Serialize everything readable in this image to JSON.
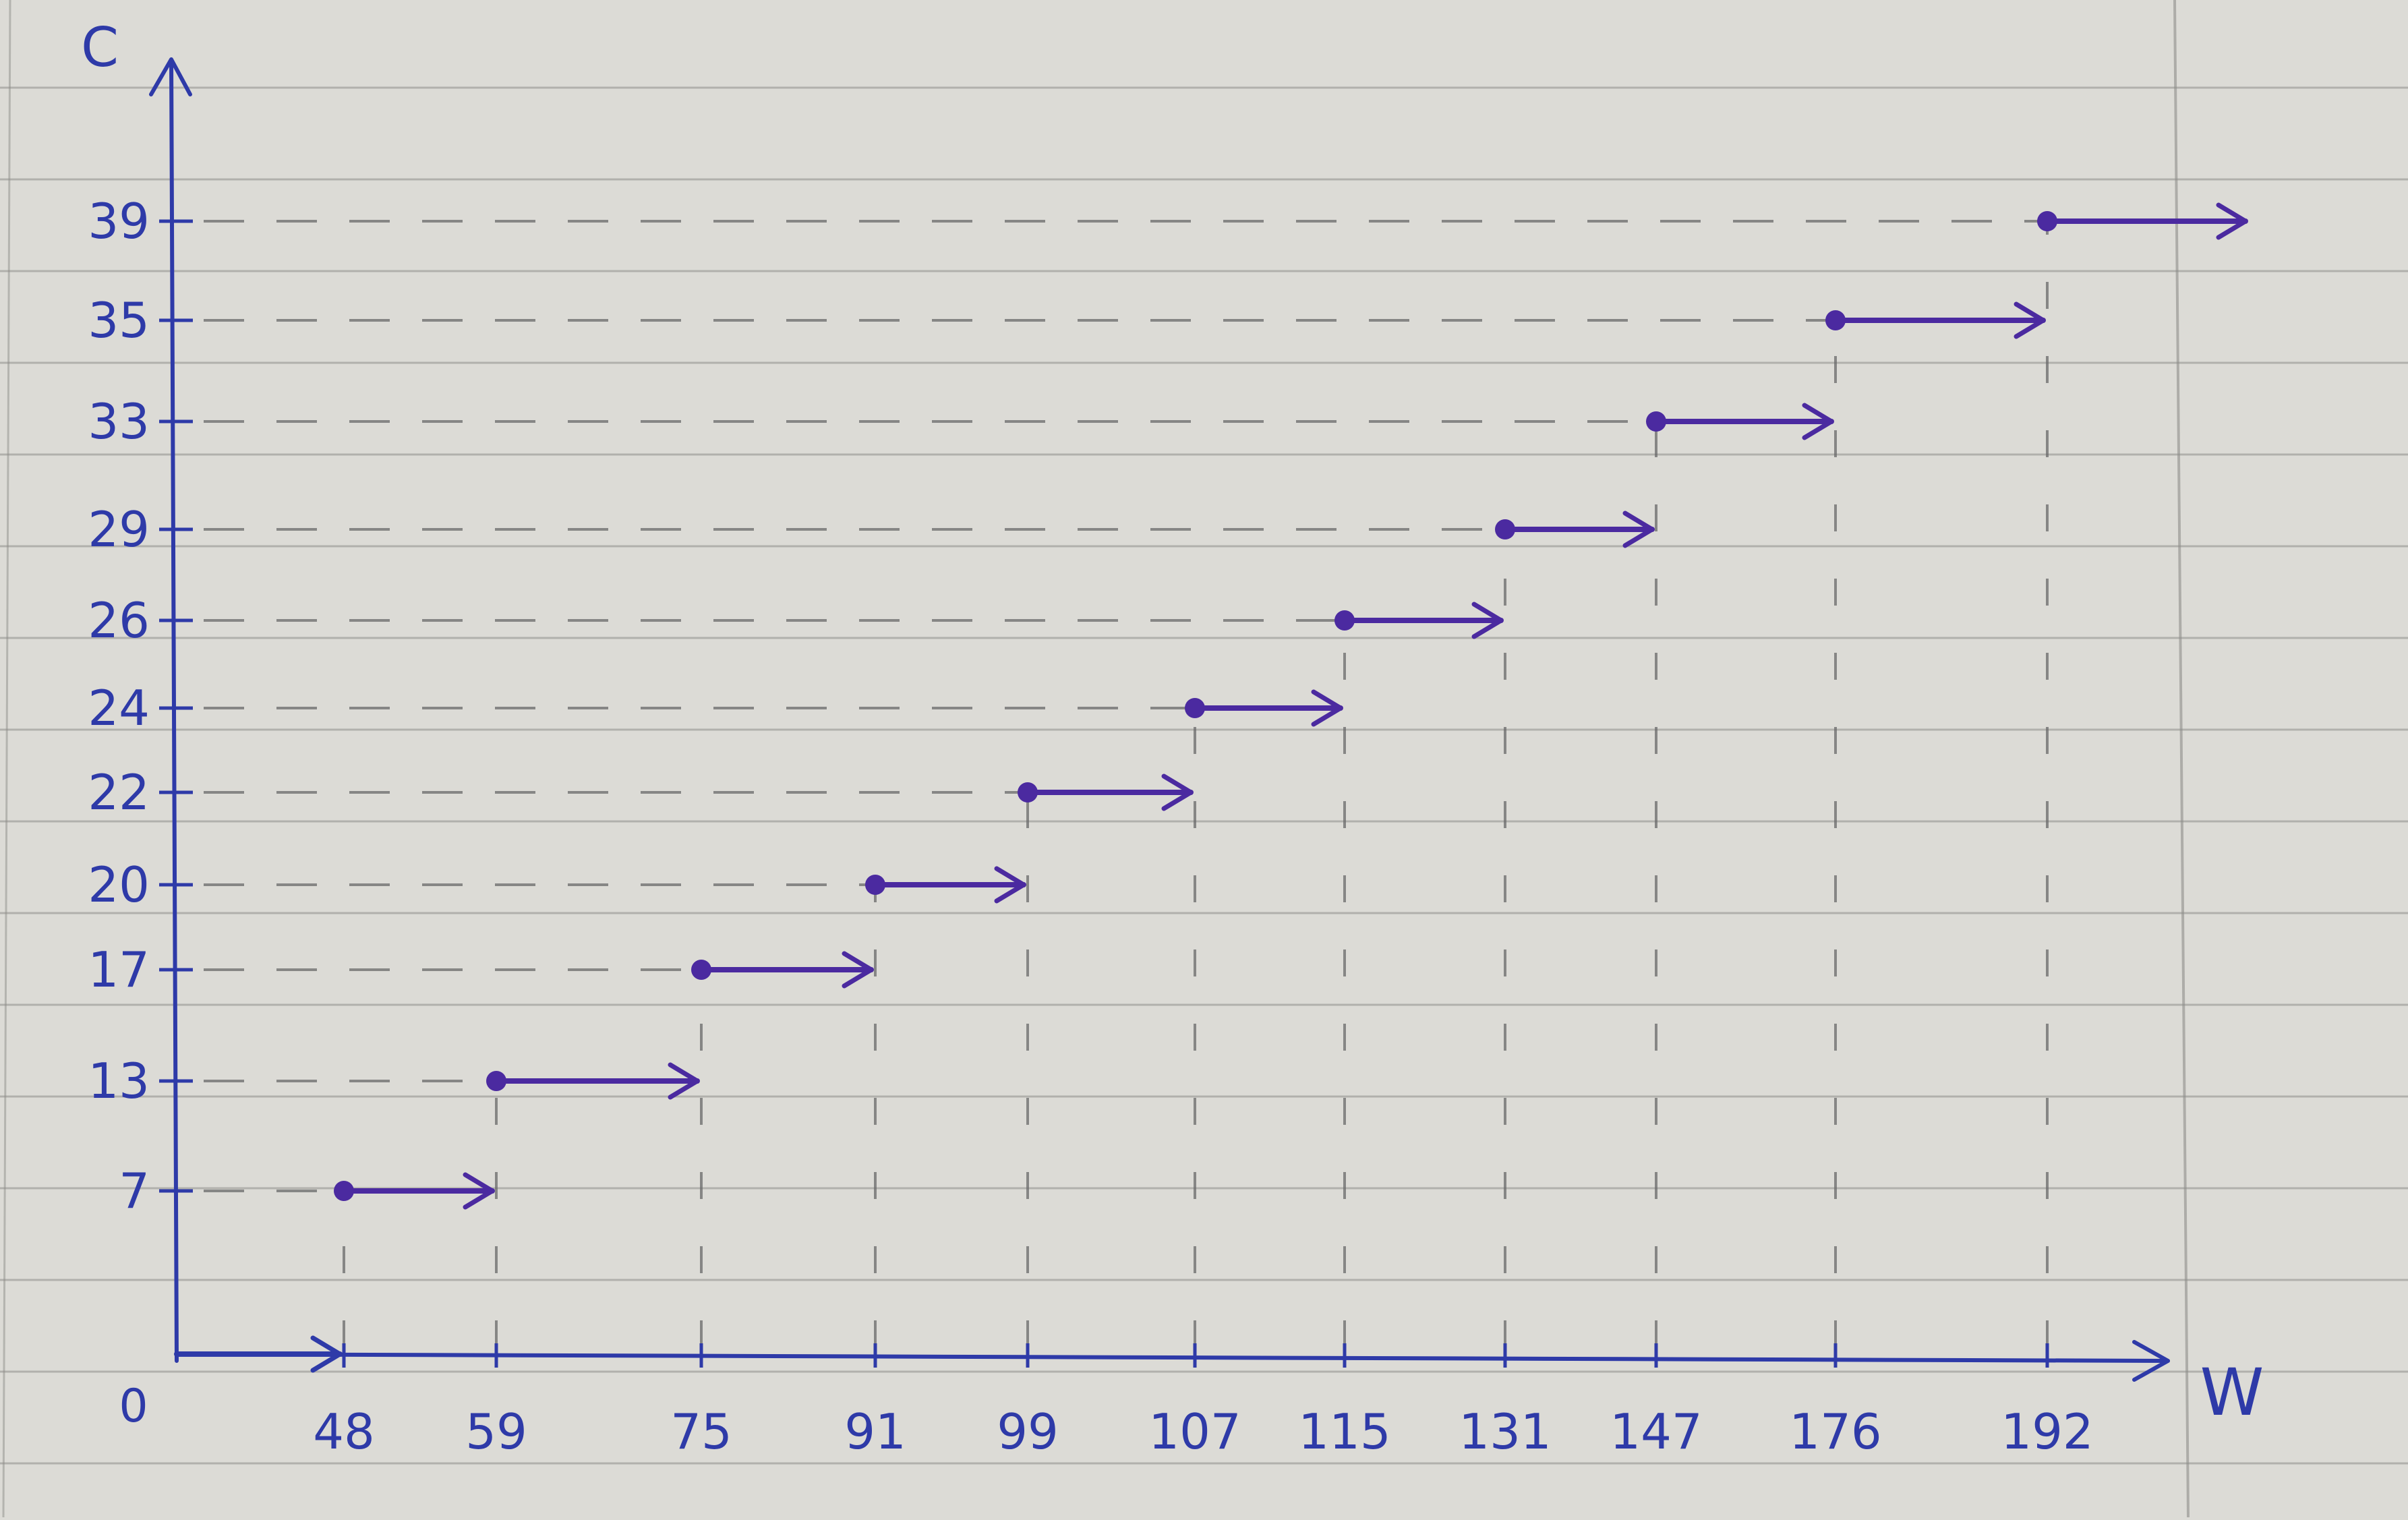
{
  "chart_data": {
    "type": "line",
    "subtype": "step",
    "title": "",
    "xlabel": "W",
    "ylabel": "C",
    "origin_label": "0",
    "x_ticks": [
      48,
      59,
      75,
      91,
      99,
      107,
      115,
      131,
      147,
      176,
      192
    ],
    "x_tick_labels": [
      "48",
      "59",
      "75",
      "91",
      "99",
      "107",
      "115",
      "131",
      "147",
      "176",
      "192"
    ],
    "y_ticks": [
      7,
      13,
      17,
      20,
      22,
      24,
      26,
      29,
      33,
      35,
      39
    ],
    "y_tick_labels": [
      "7",
      "13",
      "17",
      "20",
      "22",
      "24",
      "26",
      "29",
      "33",
      "35",
      "39"
    ],
    "segments": [
      {
        "x_start": 0,
        "x_end": 48,
        "y": 0,
        "start_closed": false
      },
      {
        "x_start": 48,
        "x_end": 59,
        "y": 7,
        "start_closed": true
      },
      {
        "x_start": 59,
        "x_end": 75,
        "y": 13,
        "start_closed": true
      },
      {
        "x_start": 75,
        "x_end": 91,
        "y": 17,
        "start_closed": true
      },
      {
        "x_start": 91,
        "x_end": 99,
        "y": 20,
        "start_closed": true
      },
      {
        "x_start": 99,
        "x_end": 107,
        "y": 22,
        "start_closed": true
      },
      {
        "x_start": 107,
        "x_end": 115,
        "y": 24,
        "start_closed": true
      },
      {
        "x_start": 115,
        "x_end": 131,
        "y": 26,
        "start_closed": true
      },
      {
        "x_start": 131,
        "x_end": 147,
        "y": 29,
        "start_closed": true
      },
      {
        "x_start": 147,
        "x_end": 176,
        "y": 33,
        "start_closed": true
      },
      {
        "x_start": 176,
        "x_end": 192,
        "y": 35,
        "start_closed": true
      },
      {
        "x_start": 192,
        "x_end": null,
        "y": 39,
        "start_closed": true
      }
    ],
    "grid": false,
    "colors": {
      "axis": "#2e3aa8",
      "steps": "#4b2aa0",
      "guides": "#6a6a6a",
      "paper": "#dcdbd6",
      "ruling": "#8e8e8a"
    }
  }
}
